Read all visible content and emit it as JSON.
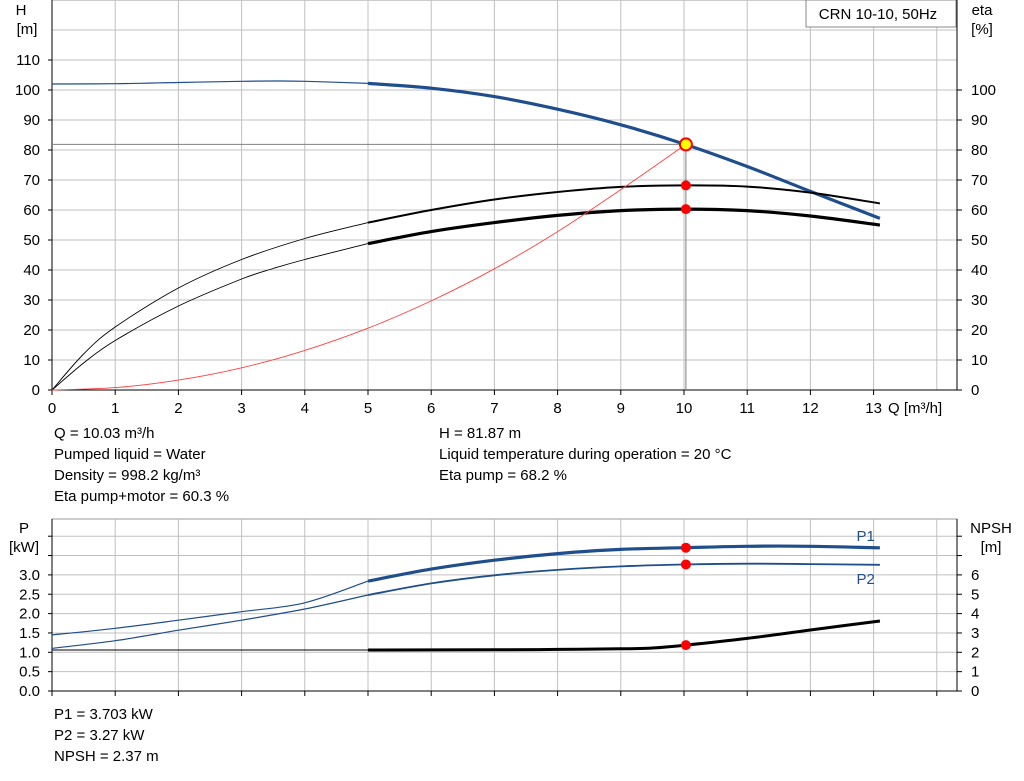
{
  "title_box": "CRN 10-10, 50Hz",
  "colors": {
    "grid": "#c0c0c0",
    "blue": "#1f4e8c",
    "black": "#000000",
    "red_line": "#ff4040",
    "marker_red": "#ff0000",
    "marker_yellow": "#ffff00",
    "op_line": "#808080"
  },
  "top_info": {
    "left": [
      "Q = 10.03 m³/h",
      "Pumped liquid = Water",
      "Density = 998.2 kg/m³",
      "Eta pump+motor = 60.3 %"
    ],
    "right": [
      "H = 81.87 m",
      "Liquid temperature during operation = 20 °C",
      "Eta pump = 68.2 %"
    ]
  },
  "bottom_info": [
    "P1 = 3.703 kW",
    "P2 = 3.27 kW",
    "NPSH = 2.37 m"
  ],
  "chart_data": [
    {
      "type": "line",
      "xlabel": "Q [m³/h]",
      "ylabel_left": [
        "H",
        "[m]"
      ],
      "ylabel_right": [
        "eta",
        "[%]"
      ],
      "xlim": [
        0,
        14
      ],
      "ylim": [
        0,
        125
      ],
      "xticks": [
        0,
        1,
        2,
        3,
        4,
        5,
        6,
        7,
        8,
        9,
        10,
        11,
        12,
        13
      ],
      "yticks_left": [
        0,
        10,
        20,
        30,
        40,
        50,
        60,
        70,
        80,
        90,
        100,
        110
      ],
      "yticks_right": [
        0,
        10,
        20,
        30,
        40,
        50,
        60,
        70,
        80,
        90,
        100
      ],
      "grid": true,
      "operating_point": {
        "q": 10.03,
        "h": 81.87,
        "eta_pump": 68.2,
        "eta_total": 60.3
      },
      "series": [
        {
          "key": "H",
          "color": "blue",
          "width_thin": 1.2,
          "width_thick": 3.2,
          "solid_from": 5,
          "points": [
            [
              0,
              102
            ],
            [
              1,
              102.1
            ],
            [
              2,
              102.5
            ],
            [
              3,
              102.9
            ],
            [
              3.5,
              103
            ],
            [
              4,
              102.9
            ],
            [
              5,
              102.2
            ],
            [
              6,
              100.6
            ],
            [
              7,
              97.8
            ],
            [
              8,
              93.6
            ],
            [
              9,
              88.4
            ],
            [
              10,
              82
            ],
            [
              11,
              74.5
            ],
            [
              12,
              66.2
            ],
            [
              13.1,
              57.2
            ]
          ]
        },
        {
          "key": "eta_pump",
          "color": "black",
          "width_thin": 0.9,
          "width_thick": 2,
          "solid_from": 5,
          "points": [
            [
              0,
              0
            ],
            [
              0.5,
              12
            ],
            [
              1,
              21
            ],
            [
              2,
              34
            ],
            [
              3,
              43.5
            ],
            [
              4,
              50.5
            ],
            [
              5,
              55.8
            ],
            [
              6,
              60
            ],
            [
              7,
              63.5
            ],
            [
              8,
              66
            ],
            [
              9,
              67.7
            ],
            [
              10,
              68.2
            ],
            [
              11,
              67.8
            ],
            [
              12,
              65.8
            ],
            [
              13.1,
              62.2
            ]
          ]
        },
        {
          "key": "eta_total",
          "color": "black",
          "width_thin": 0.9,
          "width_thick": 3.2,
          "solid_from": 5,
          "points": [
            [
              0,
              0
            ],
            [
              0.5,
              9
            ],
            [
              1,
              16.5
            ],
            [
              2,
              28
            ],
            [
              3,
              37
            ],
            [
              3.5,
              40.5
            ],
            [
              4,
              43.5
            ],
            [
              5,
              48.8
            ],
            [
              6,
              52.8
            ],
            [
              7,
              55.8
            ],
            [
              8,
              58.2
            ],
            [
              9,
              59.8
            ],
            [
              10,
              60.3
            ],
            [
              11,
              59.8
            ],
            [
              12,
              58
            ],
            [
              13.1,
              55
            ]
          ]
        },
        {
          "key": "system",
          "color": "red_line",
          "width_thin": 0.9,
          "width_thick": 0.9,
          "solid_from": 99,
          "points": [
            [
              0,
              0
            ],
            [
              1,
              0.8
            ],
            [
              2,
              3.3
            ],
            [
              3,
              7.4
            ],
            [
              4,
              13.2
            ],
            [
              5,
              20.6
            ],
            [
              6,
              29.7
            ],
            [
              7,
              40.4
            ],
            [
              8,
              52.8
            ],
            [
              9,
              66.8
            ],
            [
              10.03,
              81.87
            ]
          ]
        }
      ]
    },
    {
      "type": "line",
      "xlim": [
        0,
        14
      ],
      "ylabel_left": [
        "P",
        "[kW]"
      ],
      "ylabel_right": [
        "NPSH",
        "[m]"
      ],
      "ylim": [
        0,
        4.4
      ],
      "yticks_left": [
        "0.0",
        "0.5",
        "1.0",
        "1.5",
        "2.0",
        "2.5",
        "3.0"
      ],
      "yticks_right": [
        0,
        1,
        2,
        3,
        4,
        5,
        6
      ],
      "npsh_lim": [
        0,
        8.8
      ],
      "grid": true,
      "series": [
        {
          "key": "P1",
          "name": "P1",
          "color": "blue",
          "width_thin": 1.2,
          "width_thick": 3.2,
          "solid_from": 5,
          "points": [
            [
              0,
              1.45
            ],
            [
              1,
              1.62
            ],
            [
              2,
              1.83
            ],
            [
              3,
              2.05
            ],
            [
              4,
              2.28
            ],
            [
              5,
              2.84
            ],
            [
              6,
              3.15
            ],
            [
              7,
              3.38
            ],
            [
              8,
              3.55
            ],
            [
              9,
              3.66
            ],
            [
              10,
              3.703
            ],
            [
              11,
              3.74
            ],
            [
              12,
              3.74
            ],
            [
              13.1,
              3.7
            ]
          ]
        },
        {
          "key": "P2",
          "name": "P2",
          "color": "blue",
          "width_thin": 1.2,
          "width_thick": 1.8,
          "solid_from": 5,
          "points": [
            [
              0,
              1.1
            ],
            [
              1,
              1.3
            ],
            [
              2,
              1.57
            ],
            [
              3,
              1.83
            ],
            [
              4,
              2.12
            ],
            [
              5,
              2.48
            ],
            [
              6,
              2.78
            ],
            [
              7,
              2.99
            ],
            [
              8,
              3.13
            ],
            [
              9,
              3.22
            ],
            [
              10,
              3.27
            ],
            [
              11,
              3.29
            ],
            [
              12,
              3.28
            ],
            [
              13.1,
              3.26
            ]
          ]
        },
        {
          "key": "NPSH",
          "color": "black",
          "width_thin": 0.9,
          "width_thick": 3,
          "solid_from": 5,
          "points": [
            [
              0,
              2.12
            ],
            [
              2,
              2.12
            ],
            [
              5,
              2.12
            ],
            [
              7,
              2.13
            ],
            [
              8,
              2.15
            ],
            [
              9,
              2.18
            ],
            [
              9.5,
              2.22
            ],
            [
              10.03,
              2.37
            ],
            [
              11,
              2.72
            ],
            [
              12,
              3.15
            ],
            [
              13.1,
              3.62
            ]
          ]
        }
      ],
      "markers": [
        {
          "q": 10.03,
          "p1": 3.703,
          "p2": 3.27,
          "npsh": 2.37
        }
      ]
    }
  ]
}
